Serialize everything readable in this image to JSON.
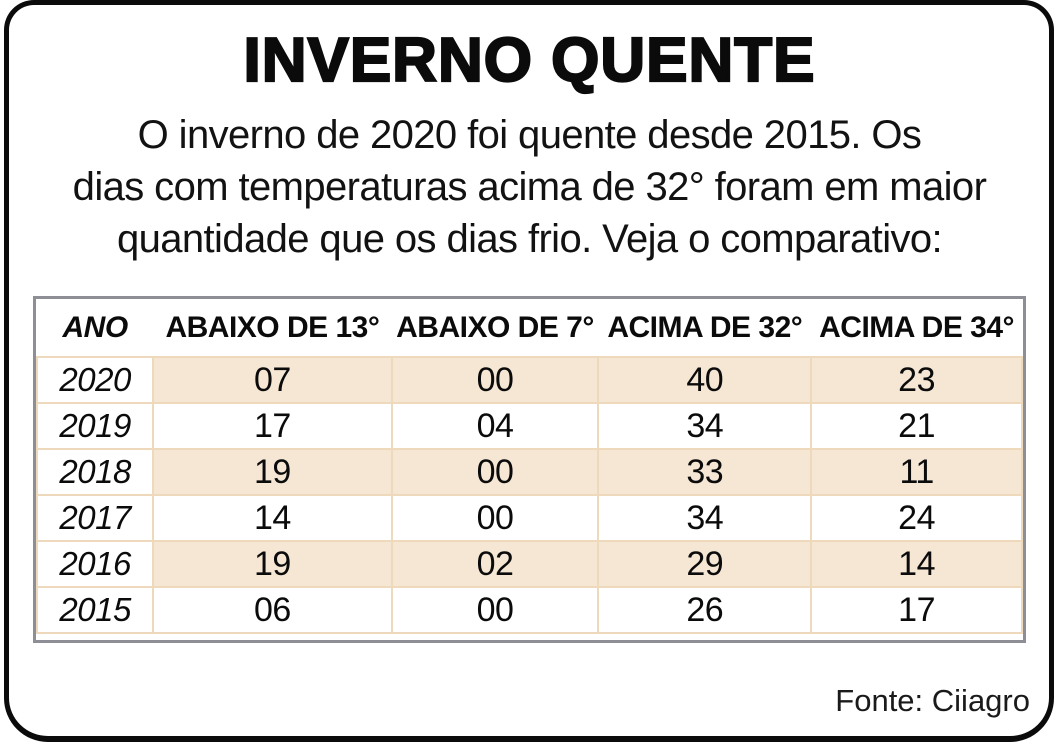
{
  "infographic": {
    "title": "INVERNO QUENTE",
    "subtitle_lines": [
      "O inverno de 2020 foi quente desde 2015. Os",
      "dias com temperaturas acima de 32° foram em maior",
      "quantidade que os dias frio. Veja o comparativo:"
    ],
    "source": "Fonte: Ciiagro"
  },
  "chart_data": {
    "type": "table",
    "title": "INVERNO QUENTE",
    "columns": [
      "ANO",
      "ABAIXO DE 13°",
      "ABAIXO DE 7°",
      "ACIMA DE 32°",
      "ACIMA DE 34°"
    ],
    "rows": [
      [
        "2020",
        "07",
        "00",
        "40",
        "23"
      ],
      [
        "2019",
        "17",
        "04",
        "34",
        "21"
      ],
      [
        "2018",
        "19",
        "00",
        "33",
        "11"
      ],
      [
        "2017",
        "14",
        "00",
        "34",
        "24"
      ],
      [
        "2016",
        "19",
        "02",
        "29",
        "14"
      ],
      [
        "2015",
        "06",
        "00",
        "26",
        "17"
      ]
    ],
    "shaded_row_years": [
      "2020",
      "2018",
      "2016"
    ],
    "colors": {
      "row_shade": "#f6e7d5",
      "cell_border": "#eed9bd",
      "table_border": "#8e8e96",
      "frame": "#0b0b0b",
      "text": "#0b0b0b"
    }
  }
}
